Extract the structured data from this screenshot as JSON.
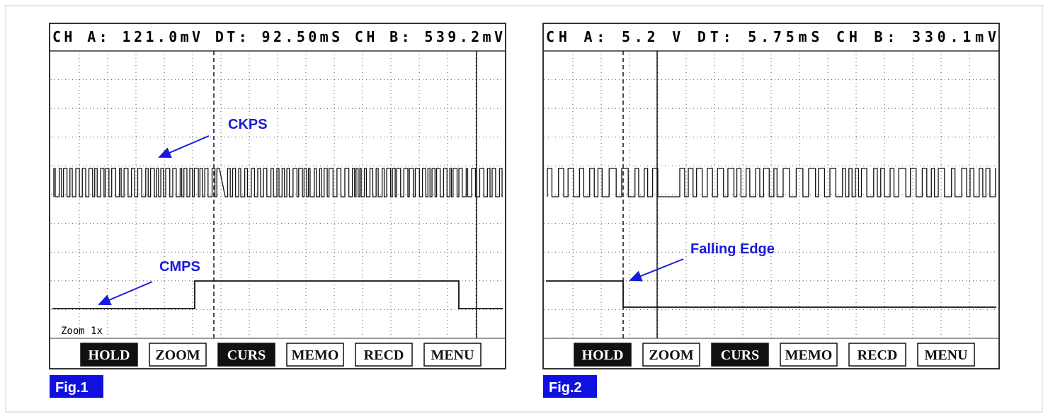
{
  "figures": [
    {
      "header": "CH A: 121.0mV DT:   92.50mS CH B: 539.2mV",
      "zoom": "Zoom 1x",
      "annotations": [
        "CKPS",
        "CMPS"
      ],
      "buttons": [
        "HOLD",
        "ZOOM",
        "CURS",
        "MEMO",
        "RECD",
        "MENU"
      ],
      "label": "Fig.1"
    },
    {
      "header": "CH A:    5.2 V DT:    5.75mS CH B: 330.1mV",
      "annotations": [
        "Falling Edge"
      ],
      "buttons": [
        "HOLD",
        "ZOOM",
        "CURS",
        "MEMO",
        "RECD",
        "MENU"
      ],
      "label": "Fig.2"
    }
  ]
}
